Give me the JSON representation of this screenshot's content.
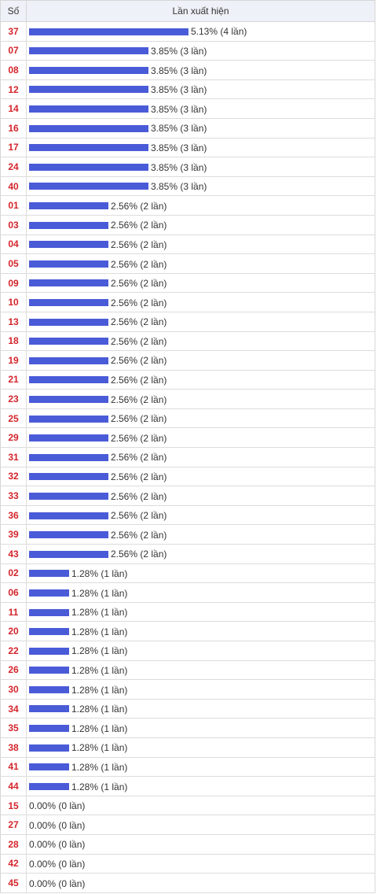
{
  "table": {
    "header_number": "Số",
    "header_frequency": "Lần xuất hiện"
  },
  "colors": {
    "bar": "#4a5bd8",
    "number_text": "#d4252c",
    "header_bg": "#eef1f7"
  },
  "chart_data": {
    "type": "bar",
    "orientation": "horizontal",
    "title": "",
    "xlabel": "Lần xuất hiện",
    "ylabel": "Số",
    "xlim": [
      0,
      5.13
    ],
    "categories": [
      "37",
      "07",
      "08",
      "12",
      "14",
      "16",
      "17",
      "24",
      "40",
      "01",
      "03",
      "04",
      "05",
      "09",
      "10",
      "13",
      "18",
      "19",
      "21",
      "23",
      "25",
      "29",
      "31",
      "32",
      "33",
      "36",
      "39",
      "43",
      "02",
      "06",
      "11",
      "20",
      "22",
      "26",
      "30",
      "34",
      "35",
      "38",
      "41",
      "44",
      "15",
      "27",
      "28",
      "42",
      "45"
    ],
    "values": [
      5.13,
      3.85,
      3.85,
      3.85,
      3.85,
      3.85,
      3.85,
      3.85,
      3.85,
      2.56,
      2.56,
      2.56,
      2.56,
      2.56,
      2.56,
      2.56,
      2.56,
      2.56,
      2.56,
      2.56,
      2.56,
      2.56,
      2.56,
      2.56,
      2.56,
      2.56,
      2.56,
      2.56,
      1.28,
      1.28,
      1.28,
      1.28,
      1.28,
      1.28,
      1.28,
      1.28,
      1.28,
      1.28,
      1.28,
      1.28,
      0.0,
      0.0,
      0.0,
      0.0,
      0.0
    ],
    "labels": [
      "5.13% (4 lần)",
      "3.85% (3 lần)",
      "3.85% (3 lần)",
      "3.85% (3 lần)",
      "3.85% (3 lần)",
      "3.85% (3 lần)",
      "3.85% (3 lần)",
      "3.85% (3 lần)",
      "3.85% (3 lần)",
      "2.56% (2 lần)",
      "2.56% (2 lần)",
      "2.56% (2 lần)",
      "2.56% (2 lần)",
      "2.56% (2 lần)",
      "2.56% (2 lần)",
      "2.56% (2 lần)",
      "2.56% (2 lần)",
      "2.56% (2 lần)",
      "2.56% (2 lần)",
      "2.56% (2 lần)",
      "2.56% (2 lần)",
      "2.56% (2 lần)",
      "2.56% (2 lần)",
      "2.56% (2 lần)",
      "2.56% (2 lần)",
      "2.56% (2 lần)",
      "2.56% (2 lần)",
      "2.56% (2 lần)",
      "1.28% (1 lần)",
      "1.28% (1 lần)",
      "1.28% (1 lần)",
      "1.28% (1 lần)",
      "1.28% (1 lần)",
      "1.28% (1 lần)",
      "1.28% (1 lần)",
      "1.28% (1 lần)",
      "1.28% (1 lần)",
      "1.28% (1 lần)",
      "1.28% (1 lần)",
      "1.28% (1 lần)",
      "0.00% (0 lần)",
      "0.00% (0 lần)",
      "0.00% (0 lần)",
      "0.00% (0 lần)",
      "0.00% (0 lần)"
    ]
  }
}
